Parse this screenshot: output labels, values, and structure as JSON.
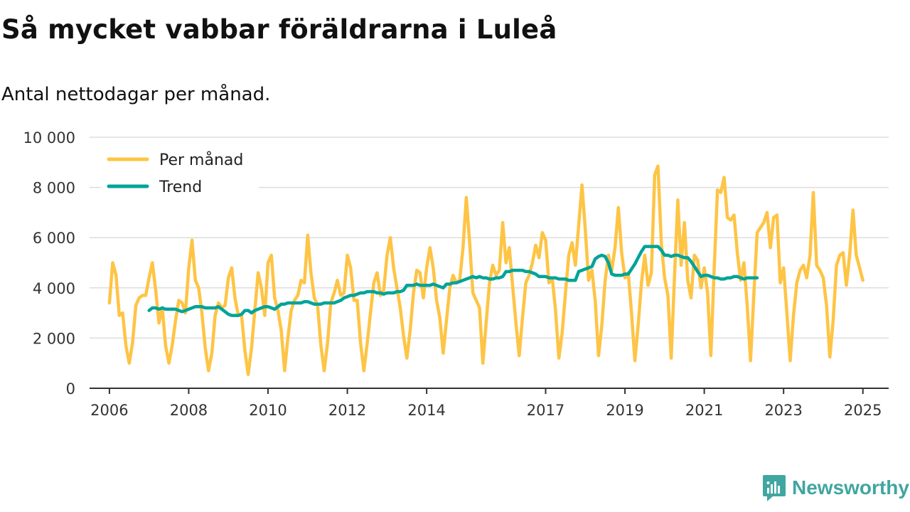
{
  "title": "Så mycket vabbar föräldrarna i Luleå",
  "subtitle": "Antal nettodagar per månad.",
  "brand": {
    "name": "Newsworthy"
  },
  "colors": {
    "monthly": "#fec445",
    "trend": "#00a398",
    "grid": "#dddddd",
    "axis": "#333333"
  },
  "chart_data": {
    "type": "line",
    "title": "Så mycket vabbar föräldrarna i Luleå",
    "subtitle": "Antal nettodagar per månad.",
    "xlabel": "",
    "ylabel": "",
    "xlim": [
      2005.5,
      2025.65
    ],
    "ylim": [
      0,
      10000
    ],
    "grid": true,
    "legend_position": "top-left",
    "x_ticks": [
      {
        "value": 2006,
        "label": "2006"
      },
      {
        "value": 2008,
        "label": "2008"
      },
      {
        "value": 2010,
        "label": "2010"
      },
      {
        "value": 2012,
        "label": "2012"
      },
      {
        "value": 2014,
        "label": "2014"
      },
      {
        "value": 2017,
        "label": "2017"
      },
      {
        "value": 2019,
        "label": "2019"
      },
      {
        "value": 2021,
        "label": "2021"
      },
      {
        "value": 2023,
        "label": "2023"
      },
      {
        "value": 2025,
        "label": "2025"
      }
    ],
    "y_ticks": [
      {
        "value": 0,
        "label": "0"
      },
      {
        "value": 2000,
        "label": "2 000"
      },
      {
        "value": 4000,
        "label": "4 000"
      },
      {
        "value": 6000,
        "label": "6 000"
      },
      {
        "value": 8000,
        "label": "8 000"
      },
      {
        "value": 10000,
        "label": "10 000"
      }
    ],
    "series": [
      {
        "name": "Per månad",
        "color": "#fec445",
        "start": [
          2006,
          1
        ],
        "values": [
          3400,
          5000,
          4500,
          2900,
          3000,
          1700,
          1000,
          1800,
          3300,
          3600,
          3700,
          3700,
          4400,
          5000,
          3900,
          2600,
          3200,
          1700,
          1000,
          1700,
          2700,
          3500,
          3400,
          3000,
          4800,
          5900,
          4300,
          4000,
          3000,
          1600,
          700,
          1400,
          2900,
          3400,
          3200,
          3300,
          4400,
          4800,
          3600,
          2900,
          2900,
          1500,
          550,
          1600,
          3100,
          4600,
          4000,
          2900,
          5000,
          5300,
          3600,
          3100,
          2300,
          700,
          2000,
          3100,
          3500,
          3700,
          4300,
          4200,
          6100,
          4600,
          3600,
          3300,
          1700,
          700,
          1800,
          3400,
          3800,
          4300,
          3700,
          3800,
          5300,
          4800,
          3500,
          3500,
          1800,
          700,
          1800,
          3000,
          4200,
          4600,
          3700,
          3900,
          5300,
          6000,
          4800,
          4000,
          3200,
          2100,
          1200,
          2300,
          3800,
          4700,
          4600,
          3600,
          4800,
          5600,
          4800,
          3500,
          2800,
          1400,
          2700,
          4000,
          4500,
          4200,
          4300,
          5600,
          7600,
          5800,
          3800,
          3500,
          3200,
          1000,
          2600,
          4200,
          4900,
          4500,
          4700,
          6600,
          5000,
          5600,
          4100,
          2600,
          1300,
          2800,
          4200,
          4500,
          5000,
          5700,
          5200,
          6200,
          5900,
          4200,
          4400,
          3100,
          1200,
          2200,
          3800,
          5300,
          5800,
          4900,
          6500,
          8100,
          6300,
          4300,
          4700,
          3500,
          1300,
          2500,
          4300,
          5300,
          4700,
          5600,
          7200,
          5400,
          4400,
          4600,
          3000,
          1100,
          2500,
          4200,
          5300,
          4100,
          4600,
          8500,
          8850,
          5800,
          4400,
          3700,
          1200,
          4500,
          7500,
          4900,
          6600,
          4300,
          3600,
          5300,
          5100,
          4000,
          4800,
          3800,
          1300,
          4800,
          7900,
          7800,
          8400,
          6800,
          6700,
          6900,
          5400,
          4300,
          5000,
          3300,
          1100,
          3700,
          6200,
          6400,
          6600,
          7000,
          5600,
          6800,
          6900,
          4200,
          4800,
          3000,
          1100,
          2900,
          4200,
          4700,
          4900,
          4400,
          5300,
          7800,
          4900,
          4700,
          4400,
          3300,
          1250,
          2700,
          4900,
          5300,
          5400,
          4100,
          5300,
          7100,
          5300,
          4800,
          4300
        ]
      },
      {
        "name": "Trend",
        "color": "#00a398",
        "start": [
          2007,
          1
        ],
        "values": [
          3100,
          3200,
          3200,
          3150,
          3200,
          3150,
          3150,
          3150,
          3150,
          3100,
          3050,
          3100,
          3150,
          3200,
          3250,
          3250,
          3250,
          3200,
          3200,
          3200,
          3200,
          3250,
          3150,
          3050,
          2950,
          2900,
          2900,
          2900,
          2950,
          3100,
          3100,
          3000,
          3100,
          3150,
          3200,
          3250,
          3250,
          3200,
          3150,
          3250,
          3350,
          3350,
          3400,
          3400,
          3400,
          3400,
          3400,
          3450,
          3450,
          3400,
          3350,
          3350,
          3350,
          3400,
          3400,
          3400,
          3400,
          3450,
          3500,
          3600,
          3650,
          3700,
          3700,
          3750,
          3800,
          3800,
          3850,
          3850,
          3850,
          3800,
          3800,
          3750,
          3800,
          3800,
          3800,
          3850,
          3850,
          3900,
          4100,
          4100,
          4100,
          4150,
          4100,
          4100,
          4100,
          4100,
          4150,
          4100,
          4050,
          4000,
          4150,
          4150,
          4200,
          4200,
          4250,
          4300,
          4350,
          4400,
          4450,
          4400,
          4450,
          4400,
          4400,
          4350,
          4350,
          4400,
          4400,
          4450,
          4650,
          4650,
          4700,
          4700,
          4700,
          4700,
          4650,
          4650,
          4600,
          4550,
          4450,
          4450,
          4450,
          4400,
          4400,
          4400,
          4350,
          4350,
          4350,
          4300,
          4300,
          4300,
          4650,
          4700,
          4750,
          4800,
          4850,
          5150,
          5250,
          5300,
          5250,
          5000,
          4550,
          4500,
          4500,
          4500,
          4550,
          4550,
          4750,
          4950,
          5200,
          5450,
          5650,
          5650,
          5650,
          5650,
          5650,
          5500,
          5300,
          5300,
          5250,
          5300,
          5300,
          5250,
          5200,
          5200,
          5050,
          4850,
          4650,
          4450,
          4500,
          4500,
          4450,
          4400,
          4400,
          4350,
          4350,
          4400,
          4400,
          4450,
          4450,
          4400,
          4350,
          4400,
          4400,
          4400,
          4400
        ]
      }
    ]
  }
}
